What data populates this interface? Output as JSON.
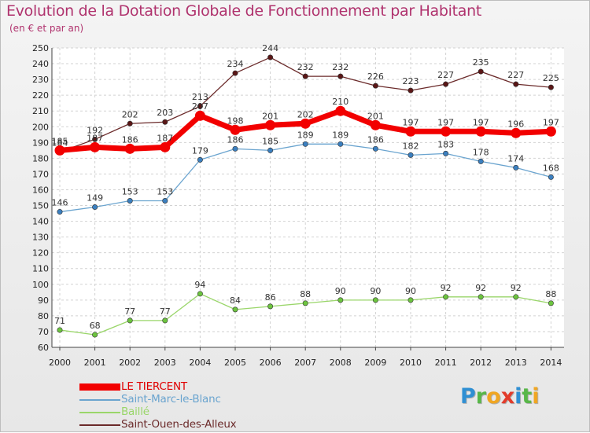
{
  "header": {
    "title": "Evolution de la Dotation Globale de Fonctionnement par Habitant",
    "subtitle": "(en € et par an)"
  },
  "logo": {
    "letters": [
      {
        "ch": "P",
        "color": "#2f8fd3"
      },
      {
        "ch": "r",
        "color": "#58b748"
      },
      {
        "ch": "o",
        "color": "#f0a623"
      },
      {
        "ch": "x",
        "color": "#e23c2b"
      },
      {
        "ch": "i",
        "color": "#2f8fd3"
      },
      {
        "ch": "t",
        "color": "#58b748"
      },
      {
        "ch": "i",
        "color": "#f0a623"
      }
    ]
  },
  "chart_data": {
    "type": "line",
    "title": "Evolution de la Dotation Globale de Fonctionnement par Habitant",
    "subtitle": "(en € et par an)",
    "xlabel": "",
    "ylabel": "",
    "categories": [
      "2000",
      "2001",
      "2002",
      "2003",
      "2004",
      "2005",
      "2006",
      "2007",
      "2008",
      "2009",
      "2010",
      "2011",
      "2012",
      "2013",
      "2014"
    ],
    "ylim": [
      60,
      250
    ],
    "yticks": [
      60,
      70,
      80,
      90,
      100,
      110,
      120,
      130,
      140,
      150,
      160,
      170,
      180,
      190,
      200,
      210,
      220,
      230,
      240,
      250
    ],
    "grid": true,
    "legend_position": "bottom-left",
    "series": [
      {
        "name": "Saint-Ouen-des-Alleux",
        "color": "#6b2a2a",
        "dot": "#5a1616",
        "values": [
          184,
          192,
          202,
          203,
          213,
          234,
          244,
          232,
          232,
          226,
          223,
          227,
          235,
          227,
          225
        ]
      },
      {
        "name": "Saint-Marc-le-Blanc",
        "color": "#6aa4cf",
        "dot": "#3b7fbf",
        "values": [
          146,
          149,
          153,
          153,
          179,
          186,
          185,
          189,
          189,
          186,
          182,
          183,
          178,
          174,
          168
        ]
      },
      {
        "name": "Baillé",
        "color": "#9ad66a",
        "dot": "#6cc43f",
        "values": [
          71,
          68,
          77,
          77,
          94,
          84,
          86,
          88,
          90,
          90,
          90,
          92,
          92,
          92,
          88
        ]
      },
      {
        "name": "LE TIERCENT",
        "color": "#f20000",
        "dot": "#f20000",
        "values": [
          185,
          187,
          186,
          187,
          207,
          198,
          201,
          202,
          210,
          201,
          197,
          197,
          197,
          196,
          197
        ]
      }
    ],
    "legend_order": [
      "LE TIERCENT",
      "Saint-Marc-le-Blanc",
      "Baillé",
      "Saint-Ouen-des-Alleux"
    ]
  }
}
